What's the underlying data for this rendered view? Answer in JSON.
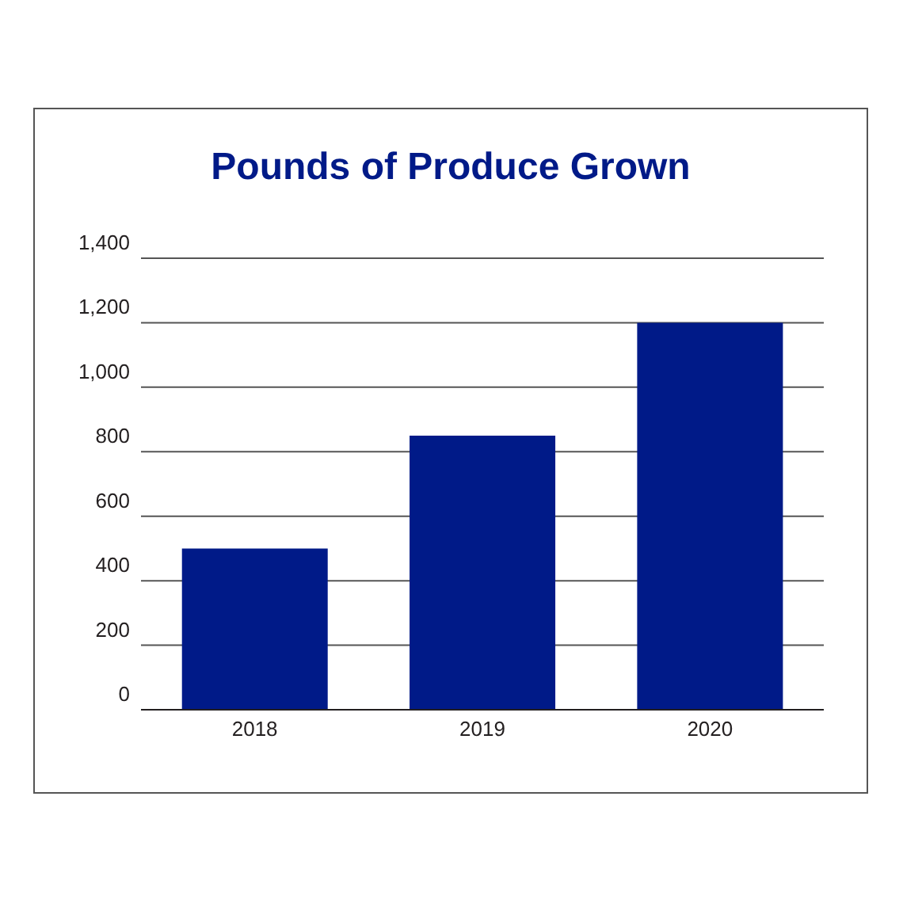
{
  "chart_data": {
    "type": "bar",
    "title": "Pounds of Produce Grown",
    "categories": [
      "2018",
      "2019",
      "2020"
    ],
    "values": [
      500,
      850,
      1200
    ],
    "color": "#001a88",
    "ylim": [
      0,
      1400
    ],
    "yticks": [
      0,
      200,
      400,
      600,
      800,
      {
        "value": 1000,
        "label": "1,000"
      },
      {
        "value": 1200,
        "label": "1,200"
      },
      {
        "value": 1400,
        "label": "1,400"
      }
    ],
    "grid": "y"
  }
}
